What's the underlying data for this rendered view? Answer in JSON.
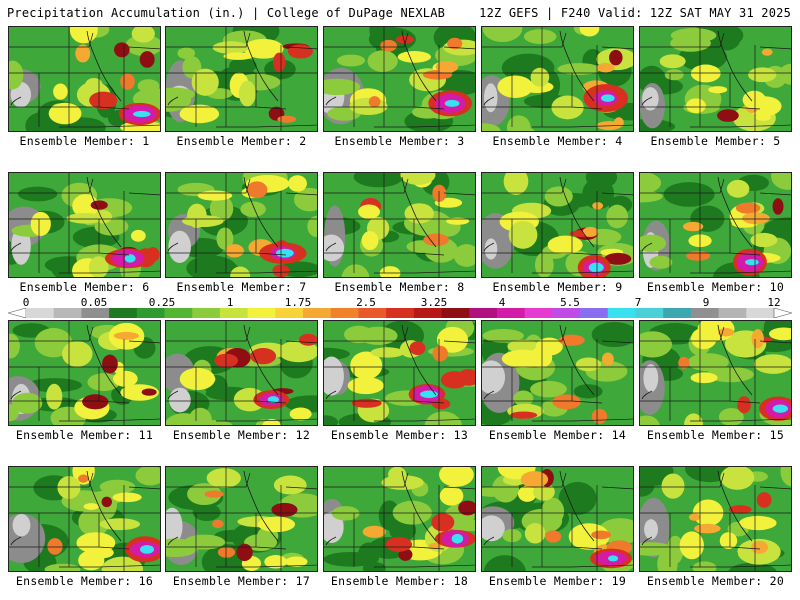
{
  "header": {
    "title": "Precipitation Accumulation (in.) | College of DuPage NEXLAB",
    "run_info": "12Z GEFS | F240 Valid: 12Z SAT MAY 31 2025"
  },
  "member_label_prefix": "Ensemble Member: ",
  "members": [
    {
      "label": "Ensemble Member: 1"
    },
    {
      "label": "Ensemble Member: 2"
    },
    {
      "label": "Ensemble Member: 3"
    },
    {
      "label": "Ensemble Member: 4"
    },
    {
      "label": "Ensemble Member: 5"
    },
    {
      "label": "Ensemble Member: 6"
    },
    {
      "label": "Ensemble Member: 7"
    },
    {
      "label": "Ensemble Member: 8"
    },
    {
      "label": "Ensemble Member: 9"
    },
    {
      "label": "Ensemble Member: 10"
    },
    {
      "label": "Ensemble Member: 11"
    },
    {
      "label": "Ensemble Member: 12"
    },
    {
      "label": "Ensemble Member: 13"
    },
    {
      "label": "Ensemble Member: 14"
    },
    {
      "label": "Ensemble Member: 15"
    },
    {
      "label": "Ensemble Member: 16"
    },
    {
      "label": "Ensemble Member: 17"
    },
    {
      "label": "Ensemble Member: 18"
    },
    {
      "label": "Ensemble Member: 19"
    },
    {
      "label": "Ensemble Member: 20"
    }
  ],
  "colorbar": {
    "tick_labels": [
      "0",
      "0.05",
      "0.25",
      "1",
      "1.75",
      "2.5",
      "3.25",
      "4",
      "5.5",
      "7",
      "9",
      "12"
    ],
    "colors": [
      "#d8d8d8",
      "#b8b8b8",
      "#8f8f8f",
      "#1e7a1e",
      "#2f9a2f",
      "#52b632",
      "#8ccc3c",
      "#c8e23e",
      "#f2f23c",
      "#f7d23a",
      "#f5a832",
      "#f2812c",
      "#e85b28",
      "#d83020",
      "#b81818",
      "#8e0e14",
      "#b01080",
      "#d41aa8",
      "#e63ad0",
      "#c04ce8",
      "#8a6ef0",
      "#38e0f0",
      "#4ad0d6",
      "#3aa8ae",
      "#909090",
      "#b4b4b4",
      "#d8d8d8"
    ]
  },
  "map_palette": {
    "gray_light": "#d0d0d0",
    "gray_dark": "#8c8c8c",
    "green_dark": "#1e7a1e",
    "green": "#3fa83a",
    "green_light": "#8ccc3c",
    "yellow_green": "#c8e23e",
    "yellow": "#f2f23c",
    "orange": "#f5a832",
    "orange_red": "#ef7a2c",
    "red": "#d83020",
    "dark_red": "#8e0e14",
    "magenta": "#d41aa8",
    "violet": "#c04ce8",
    "cyan": "#38e0f0"
  }
}
